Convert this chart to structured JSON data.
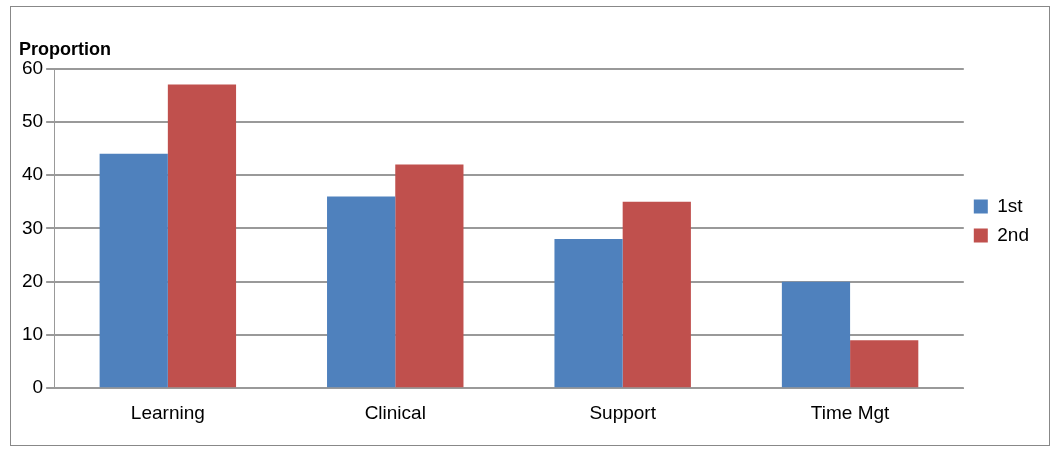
{
  "chart_data": {
    "type": "bar",
    "ylabel": "Proportion",
    "categories": [
      "Learning",
      "Clinical",
      "Support",
      "Time Mgt"
    ],
    "series": [
      {
        "name": "1st",
        "color": "#4f81bd",
        "values": [
          44,
          36,
          28,
          20
        ]
      },
      {
        "name": "2nd",
        "color": "#c0504d",
        "values": [
          57,
          42,
          35,
          9
        ]
      }
    ],
    "ylim": [
      0,
      60
    ],
    "yticks": [
      0,
      10,
      20,
      30,
      40,
      50,
      60
    ],
    "grid": "y",
    "legend": "right"
  }
}
